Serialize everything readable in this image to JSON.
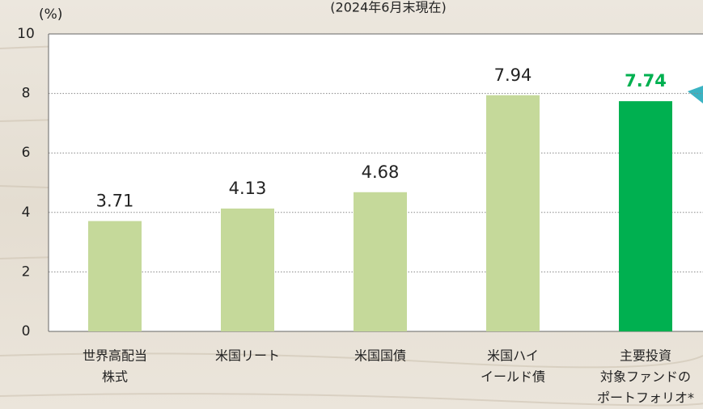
{
  "chart_data": {
    "type": "bar",
    "y_unit_label": "(%)",
    "subtitle": "(2024年6月末現在)",
    "categories": [
      [
        "世界高配当",
        "株式"
      ],
      [
        "米国リート"
      ],
      [
        "米国国債"
      ],
      [
        "米国ハイ",
        "イールド債"
      ],
      [
        "主要投資",
        "対象ファンドの",
        "ポートフォリオ*"
      ]
    ],
    "values": [
      3.71,
      4.13,
      4.68,
      7.94,
      7.74
    ],
    "color": "#c5d99a",
    "highlight_index": 4,
    "highlight_color": "#00b050",
    "ylim": [
      0,
      10
    ],
    "yticks": [
      0,
      2,
      4,
      6,
      8,
      10
    ],
    "grid": true
  }
}
